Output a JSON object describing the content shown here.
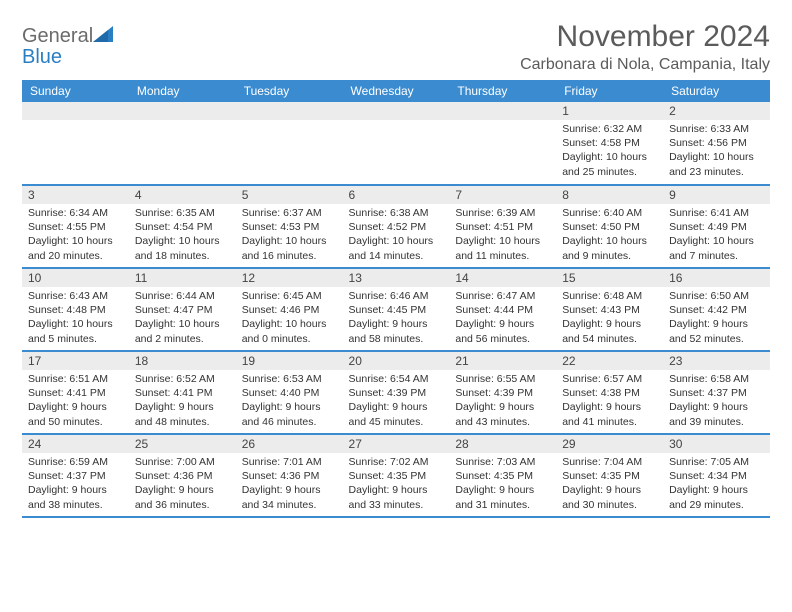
{
  "logo": {
    "general": "General",
    "blue": "Blue"
  },
  "title": "November 2024",
  "location": "Carbonara di Nola, Campania, Italy",
  "colors": {
    "header_bg": "#3a8bd0",
    "header_text": "#ffffff",
    "daynum_bg": "#ececec",
    "border": "#3a8bd0",
    "logo_blue": "#2a7fc3",
    "logo_gray": "#6b6b6b",
    "text": "#333333"
  },
  "weekdays": [
    "Sunday",
    "Monday",
    "Tuesday",
    "Wednesday",
    "Thursday",
    "Friday",
    "Saturday"
  ],
  "weeks": [
    [
      null,
      null,
      null,
      null,
      null,
      {
        "n": "1",
        "sunrise": "Sunrise: 6:32 AM",
        "sunset": "Sunset: 4:58 PM",
        "daylight": "Daylight: 10 hours and 25 minutes."
      },
      {
        "n": "2",
        "sunrise": "Sunrise: 6:33 AM",
        "sunset": "Sunset: 4:56 PM",
        "daylight": "Daylight: 10 hours and 23 minutes."
      }
    ],
    [
      {
        "n": "3",
        "sunrise": "Sunrise: 6:34 AM",
        "sunset": "Sunset: 4:55 PM",
        "daylight": "Daylight: 10 hours and 20 minutes."
      },
      {
        "n": "4",
        "sunrise": "Sunrise: 6:35 AM",
        "sunset": "Sunset: 4:54 PM",
        "daylight": "Daylight: 10 hours and 18 minutes."
      },
      {
        "n": "5",
        "sunrise": "Sunrise: 6:37 AM",
        "sunset": "Sunset: 4:53 PM",
        "daylight": "Daylight: 10 hours and 16 minutes."
      },
      {
        "n": "6",
        "sunrise": "Sunrise: 6:38 AM",
        "sunset": "Sunset: 4:52 PM",
        "daylight": "Daylight: 10 hours and 14 minutes."
      },
      {
        "n": "7",
        "sunrise": "Sunrise: 6:39 AM",
        "sunset": "Sunset: 4:51 PM",
        "daylight": "Daylight: 10 hours and 11 minutes."
      },
      {
        "n": "8",
        "sunrise": "Sunrise: 6:40 AM",
        "sunset": "Sunset: 4:50 PM",
        "daylight": "Daylight: 10 hours and 9 minutes."
      },
      {
        "n": "9",
        "sunrise": "Sunrise: 6:41 AM",
        "sunset": "Sunset: 4:49 PM",
        "daylight": "Daylight: 10 hours and 7 minutes."
      }
    ],
    [
      {
        "n": "10",
        "sunrise": "Sunrise: 6:43 AM",
        "sunset": "Sunset: 4:48 PM",
        "daylight": "Daylight: 10 hours and 5 minutes."
      },
      {
        "n": "11",
        "sunrise": "Sunrise: 6:44 AM",
        "sunset": "Sunset: 4:47 PM",
        "daylight": "Daylight: 10 hours and 2 minutes."
      },
      {
        "n": "12",
        "sunrise": "Sunrise: 6:45 AM",
        "sunset": "Sunset: 4:46 PM",
        "daylight": "Daylight: 10 hours and 0 minutes."
      },
      {
        "n": "13",
        "sunrise": "Sunrise: 6:46 AM",
        "sunset": "Sunset: 4:45 PM",
        "daylight": "Daylight: 9 hours and 58 minutes."
      },
      {
        "n": "14",
        "sunrise": "Sunrise: 6:47 AM",
        "sunset": "Sunset: 4:44 PM",
        "daylight": "Daylight: 9 hours and 56 minutes."
      },
      {
        "n": "15",
        "sunrise": "Sunrise: 6:48 AM",
        "sunset": "Sunset: 4:43 PM",
        "daylight": "Daylight: 9 hours and 54 minutes."
      },
      {
        "n": "16",
        "sunrise": "Sunrise: 6:50 AM",
        "sunset": "Sunset: 4:42 PM",
        "daylight": "Daylight: 9 hours and 52 minutes."
      }
    ],
    [
      {
        "n": "17",
        "sunrise": "Sunrise: 6:51 AM",
        "sunset": "Sunset: 4:41 PM",
        "daylight": "Daylight: 9 hours and 50 minutes."
      },
      {
        "n": "18",
        "sunrise": "Sunrise: 6:52 AM",
        "sunset": "Sunset: 4:41 PM",
        "daylight": "Daylight: 9 hours and 48 minutes."
      },
      {
        "n": "19",
        "sunrise": "Sunrise: 6:53 AM",
        "sunset": "Sunset: 4:40 PM",
        "daylight": "Daylight: 9 hours and 46 minutes."
      },
      {
        "n": "20",
        "sunrise": "Sunrise: 6:54 AM",
        "sunset": "Sunset: 4:39 PM",
        "daylight": "Daylight: 9 hours and 45 minutes."
      },
      {
        "n": "21",
        "sunrise": "Sunrise: 6:55 AM",
        "sunset": "Sunset: 4:39 PM",
        "daylight": "Daylight: 9 hours and 43 minutes."
      },
      {
        "n": "22",
        "sunrise": "Sunrise: 6:57 AM",
        "sunset": "Sunset: 4:38 PM",
        "daylight": "Daylight: 9 hours and 41 minutes."
      },
      {
        "n": "23",
        "sunrise": "Sunrise: 6:58 AM",
        "sunset": "Sunset: 4:37 PM",
        "daylight": "Daylight: 9 hours and 39 minutes."
      }
    ],
    [
      {
        "n": "24",
        "sunrise": "Sunrise: 6:59 AM",
        "sunset": "Sunset: 4:37 PM",
        "daylight": "Daylight: 9 hours and 38 minutes."
      },
      {
        "n": "25",
        "sunrise": "Sunrise: 7:00 AM",
        "sunset": "Sunset: 4:36 PM",
        "daylight": "Daylight: 9 hours and 36 minutes."
      },
      {
        "n": "26",
        "sunrise": "Sunrise: 7:01 AM",
        "sunset": "Sunset: 4:36 PM",
        "daylight": "Daylight: 9 hours and 34 minutes."
      },
      {
        "n": "27",
        "sunrise": "Sunrise: 7:02 AM",
        "sunset": "Sunset: 4:35 PM",
        "daylight": "Daylight: 9 hours and 33 minutes."
      },
      {
        "n": "28",
        "sunrise": "Sunrise: 7:03 AM",
        "sunset": "Sunset: 4:35 PM",
        "daylight": "Daylight: 9 hours and 31 minutes."
      },
      {
        "n": "29",
        "sunrise": "Sunrise: 7:04 AM",
        "sunset": "Sunset: 4:35 PM",
        "daylight": "Daylight: 9 hours and 30 minutes."
      },
      {
        "n": "30",
        "sunrise": "Sunrise: 7:05 AM",
        "sunset": "Sunset: 4:34 PM",
        "daylight": "Daylight: 9 hours and 29 minutes."
      }
    ]
  ]
}
